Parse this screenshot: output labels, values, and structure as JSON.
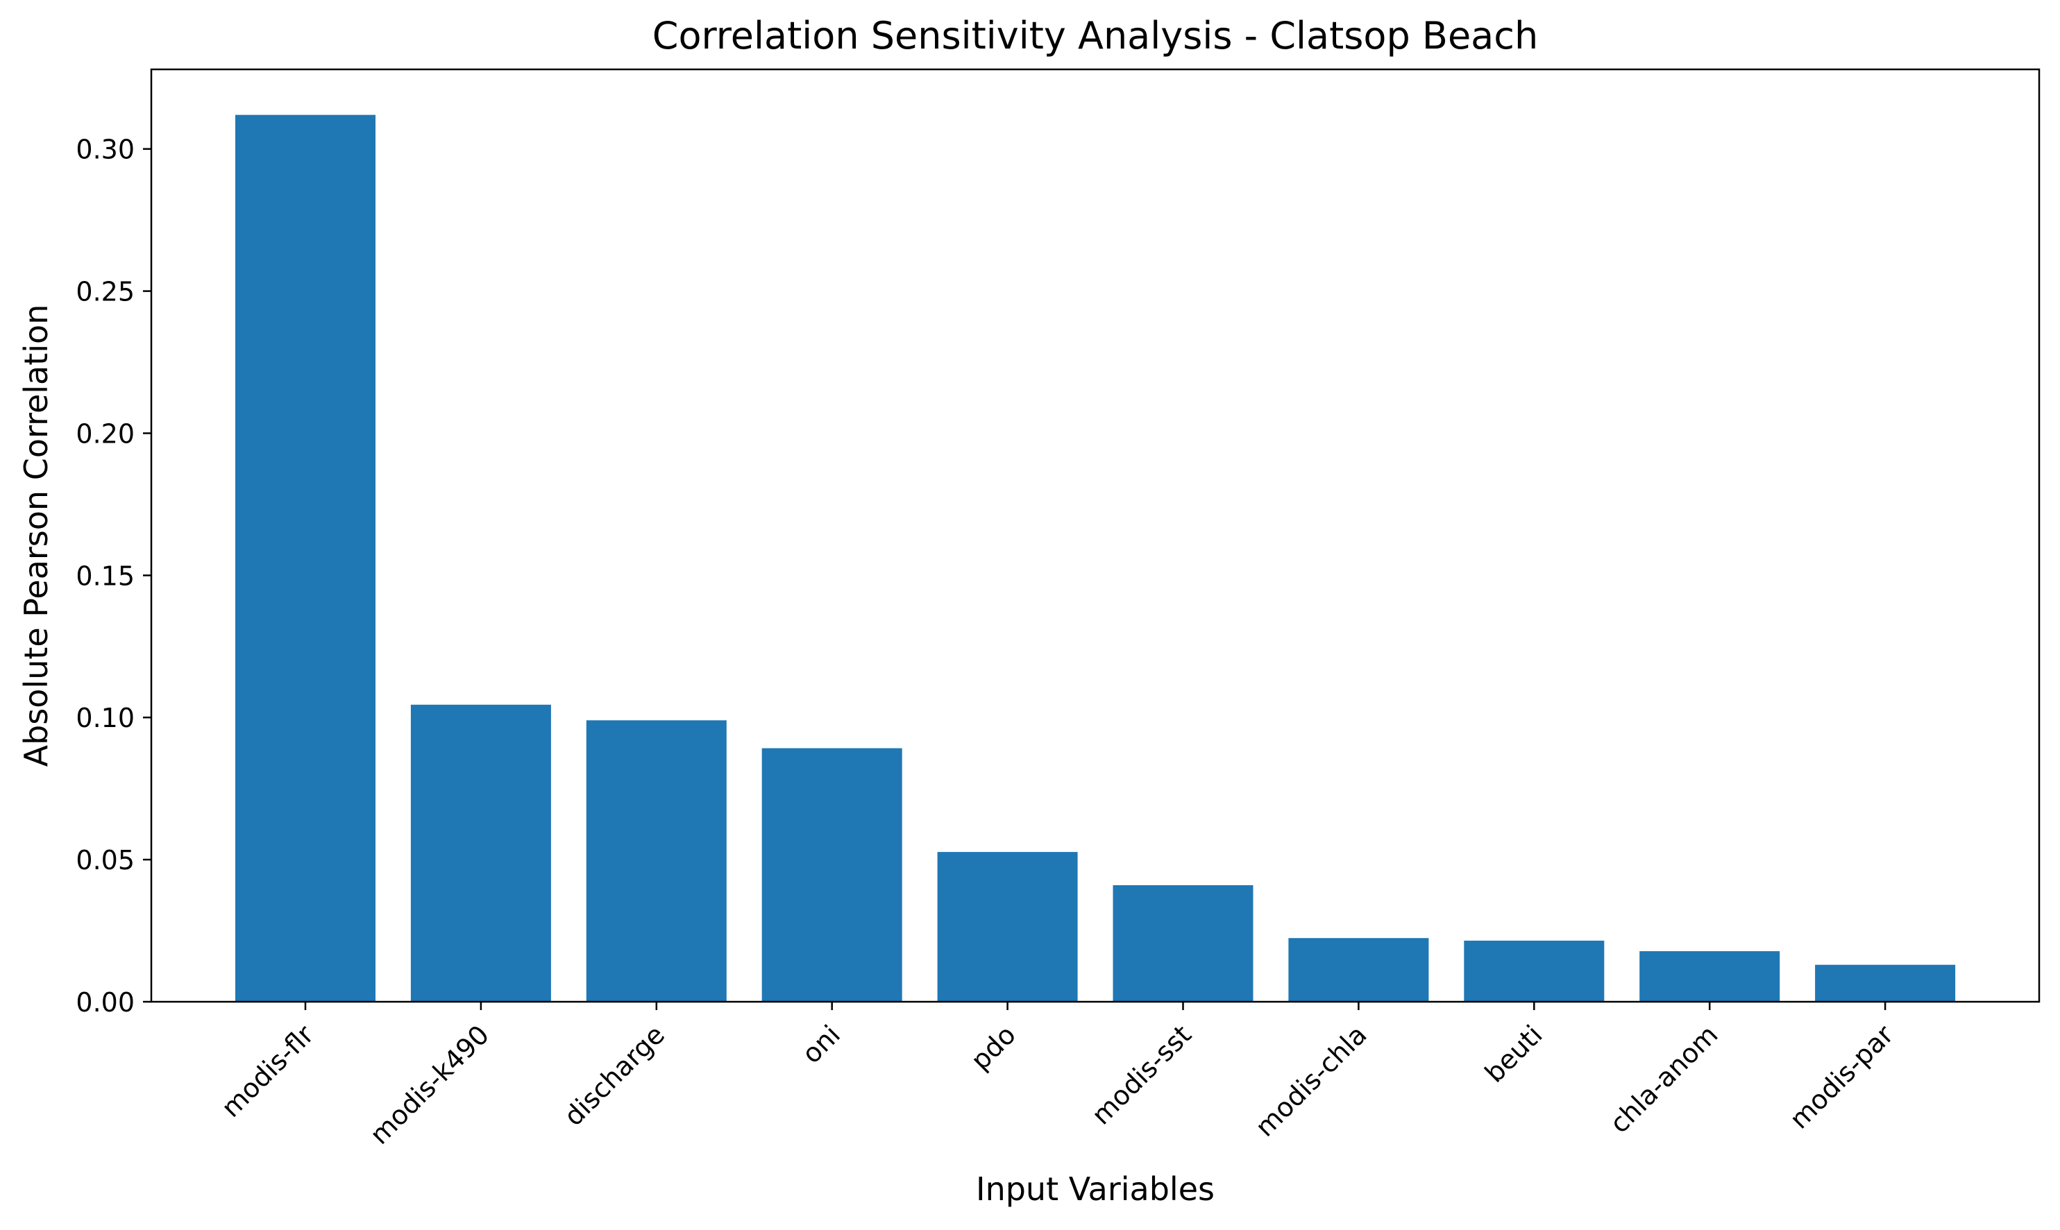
{
  "chart_data": {
    "type": "bar",
    "title": "Correlation Sensitivity Analysis - Clatsop Beach",
    "xlabel": "Input Variables",
    "ylabel": "Absolute Pearson Correlation",
    "categories": [
      "modis-flr",
      "modis-k490",
      "discharge",
      "oni",
      "pdo",
      "modis-sst",
      "modis-chla",
      "beuti",
      "chla-anom",
      "modis-par"
    ],
    "values": [
      0.312,
      0.1045,
      0.099,
      0.0892,
      0.0527,
      0.041,
      0.0224,
      0.0215,
      0.0178,
      0.013
    ],
    "ylim": [
      0,
      0.328
    ],
    "yticks": [
      0.0,
      0.05,
      0.1,
      0.15,
      0.2,
      0.25,
      0.3
    ],
    "ytick_labels": [
      "0.00",
      "0.05",
      "0.10",
      "0.15",
      "0.20",
      "0.25",
      "0.30"
    ],
    "grid": false,
    "legend": "none",
    "bar_color": "#1f77b4"
  }
}
